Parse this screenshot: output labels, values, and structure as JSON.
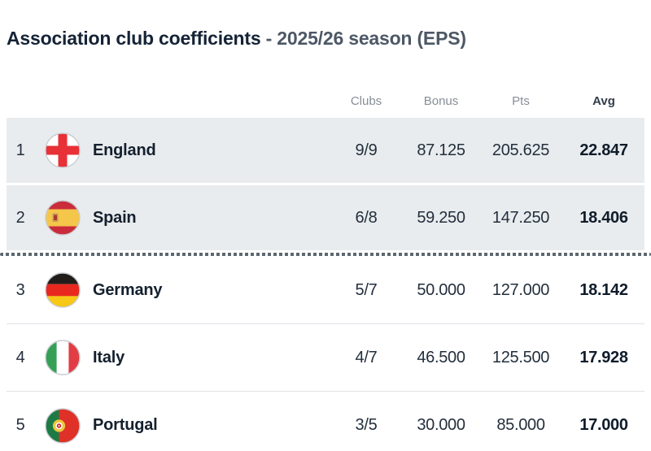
{
  "title": {
    "main": "Association club coefficients",
    "suffix": " - 2025/26 season (EPS)"
  },
  "table": {
    "headers": {
      "clubs": "Clubs",
      "bonus": "Bonus",
      "pts": "Pts",
      "avg": "Avg"
    },
    "cutoff_after_rank": 2,
    "rows": [
      {
        "rank": "1",
        "country": "England",
        "flag": "england",
        "clubs": "9/9",
        "bonus": "87.125",
        "pts": "205.625",
        "avg": "22.847",
        "highlighted": true
      },
      {
        "rank": "2",
        "country": "Spain",
        "flag": "spain",
        "clubs": "6/8",
        "bonus": "59.250",
        "pts": "147.250",
        "avg": "18.406",
        "highlighted": true
      },
      {
        "rank": "3",
        "country": "Germany",
        "flag": "germany",
        "clubs": "5/7",
        "bonus": "50.000",
        "pts": "127.000",
        "avg": "18.142",
        "highlighted": false
      },
      {
        "rank": "4",
        "country": "Italy",
        "flag": "italy",
        "clubs": "4/7",
        "bonus": "46.500",
        "pts": "125.500",
        "avg": "17.928",
        "highlighted": false
      },
      {
        "rank": "5",
        "country": "Portugal",
        "flag": "portugal",
        "clubs": "3/5",
        "bonus": "30.000",
        "pts": "85.000",
        "avg": "17.000",
        "highlighted": false
      }
    ]
  },
  "colors": {
    "title_main": "#152336",
    "title_suffix": "#4d5866",
    "header_text": "#878e97",
    "header_avg": "#333e4a",
    "highlight_row_bg": "#e9ecee",
    "rank_text": "#8b929b",
    "country_text": "#14202e",
    "value_text": "#232f3d",
    "avg_value_text": "#101c2b",
    "row_border": "#e0e3e7",
    "cutoff_dots": "#5d6770"
  }
}
